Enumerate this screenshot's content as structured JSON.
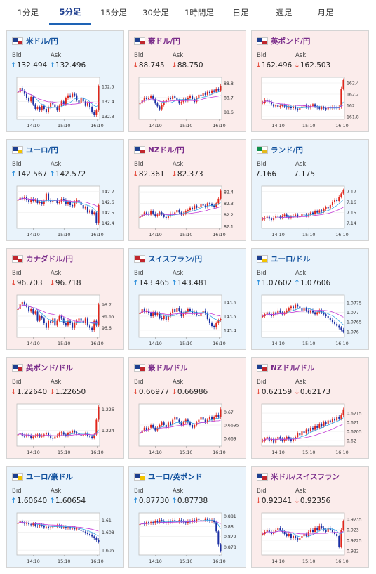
{
  "tabs": [
    "1分足",
    "5分足",
    "15分足",
    "30分足",
    "1時間足",
    "日足",
    "週足",
    "月足"
  ],
  "active_tab": 1,
  "x_ticks": [
    "14:10",
    "15:10",
    "16:10"
  ],
  "labels": {
    "bid": "Bid",
    "ask": "Ask"
  },
  "pairs": [
    {
      "name": "米ドル/円",
      "bid": "132.494",
      "ask": "132.496",
      "dir": "up",
      "theme": "blue",
      "flag": {
        "a": "#1e3f8f",
        "b": "#c0262d"
      },
      "ticks": [
        "132.5",
        "132.4",
        "132.3"
      ],
      "ymin": 132.28,
      "ymax": 132.56,
      "series": [
        132.46,
        132.49,
        132.47,
        132.45,
        132.42,
        132.4,
        132.43,
        132.38,
        132.35,
        132.36,
        132.34,
        132.37,
        132.35,
        132.33,
        132.36,
        132.39,
        132.38,
        132.36,
        132.34,
        132.37,
        132.4,
        132.38,
        132.42,
        132.44,
        132.43,
        132.45,
        132.44,
        132.41,
        132.39,
        132.42,
        132.4,
        132.37,
        132.39,
        132.36,
        132.33,
        132.31,
        132.34,
        132.5
      ]
    },
    {
      "name": "豪ドル/円",
      "bid": "88.745",
      "ask": "88.750",
      "dir": "down",
      "theme": "red",
      "flag": {
        "a": "#1e3f8f",
        "b": "#c0262d"
      },
      "ticks": [
        "88.8",
        "88.7",
        "88.6"
      ],
      "ymin": 88.55,
      "ymax": 88.84,
      "series": [
        88.66,
        88.68,
        88.7,
        88.69,
        88.7,
        88.71,
        88.69,
        88.66,
        88.64,
        88.62,
        88.65,
        88.67,
        88.68,
        88.7,
        88.69,
        88.71,
        88.7,
        88.68,
        88.66,
        88.67,
        88.69,
        88.68,
        88.7,
        88.71,
        88.69,
        88.67,
        88.7,
        88.72,
        88.71,
        88.73,
        88.72,
        88.74,
        88.73,
        88.75,
        88.74,
        88.76,
        88.75,
        88.78
      ]
    },
    {
      "name": "英ポンド/円",
      "bid": "162.496",
      "ask": "162.503",
      "dir": "down",
      "theme": "red",
      "flag": {
        "a": "#1e3f8f",
        "b": "#c0262d"
      },
      "ticks": [
        "162.4",
        "162.2",
        "162",
        "161.8"
      ],
      "ymin": 161.75,
      "ymax": 162.5,
      "series": [
        162.05,
        162.1,
        162.08,
        162.06,
        162.02,
        161.98,
        162.0,
        161.97,
        161.99,
        162.0,
        161.98,
        161.96,
        161.97,
        161.95,
        161.98,
        161.94,
        161.92,
        161.95,
        161.98,
        162.0,
        161.97,
        161.96,
        161.99,
        162.02,
        161.98,
        161.96,
        161.94,
        161.96,
        161.95,
        161.93,
        161.96,
        161.95,
        161.97,
        161.96,
        161.95,
        161.97,
        162.3,
        162.45
      ]
    },
    {
      "name": "ユーロ/円",
      "bid": "142.567",
      "ask": "142.572",
      "dir": "up",
      "theme": "blue",
      "flag": {
        "a": "#1e3f8f",
        "b": "#f2c300"
      },
      "ticks": [
        "142.7",
        "142.6",
        "142.5",
        "142.4"
      ],
      "ymin": 142.35,
      "ymax": 142.75,
      "series": [
        142.62,
        142.64,
        142.63,
        142.65,
        142.62,
        142.6,
        142.63,
        142.61,
        142.62,
        142.59,
        142.6,
        142.58,
        142.61,
        142.68,
        142.62,
        142.6,
        142.61,
        142.62,
        142.59,
        142.6,
        142.63,
        142.62,
        142.58,
        142.6,
        142.57,
        142.56,
        142.6,
        142.62,
        142.6,
        142.57,
        142.54,
        142.55,
        142.5,
        142.52,
        142.49,
        142.5,
        142.4,
        142.57
      ]
    },
    {
      "name": "NZドル/円",
      "bid": "82.361",
      "ask": "82.373",
      "dir": "down",
      "theme": "red",
      "flag": {
        "a": "#1e3f8f",
        "b": "#c0262d"
      },
      "ticks": [
        "82.4",
        "82.3",
        "82.2",
        "82.1"
      ],
      "ymin": 82.08,
      "ymax": 82.45,
      "series": [
        82.18,
        82.2,
        82.22,
        82.21,
        82.2,
        82.23,
        82.21,
        82.19,
        82.2,
        82.22,
        82.2,
        82.18,
        82.17,
        82.19,
        82.21,
        82.2,
        82.22,
        82.24,
        82.22,
        82.2,
        82.21,
        82.23,
        82.24,
        82.26,
        82.25,
        82.28,
        82.26,
        82.27,
        82.29,
        82.28,
        82.27,
        82.3,
        82.29,
        82.28,
        82.27,
        82.3,
        82.34,
        82.41
      ]
    },
    {
      "name": "ランド/円",
      "bid": "7.166",
      "ask": "7.175",
      "dir": "none",
      "theme": "blue",
      "flag": {
        "a": "#0d8f4a",
        "b": "#e4b91e"
      },
      "ticks": [
        "7.17",
        "7.16",
        "7.15",
        "7.14"
      ],
      "ymin": 7.135,
      "ymax": 7.175,
      "series": [
        7.144,
        7.145,
        7.146,
        7.144,
        7.143,
        7.145,
        7.147,
        7.146,
        7.145,
        7.147,
        7.148,
        7.146,
        7.145,
        7.146,
        7.147,
        7.148,
        7.146,
        7.147,
        7.149,
        7.148,
        7.147,
        7.148,
        7.15,
        7.149,
        7.151,
        7.15,
        7.152,
        7.151,
        7.153,
        7.155,
        7.154,
        7.157,
        7.16,
        7.162,
        7.161,
        7.165,
        7.168,
        7.171
      ]
    },
    {
      "name": "カナダドル/円",
      "bid": "96.703",
      "ask": "96.718",
      "dir": "down",
      "theme": "red",
      "flag": {
        "a": "#c0262d",
        "b": "#c0262d"
      },
      "ticks": [
        "96.7",
        "96.65",
        "96.6"
      ],
      "ymin": 96.56,
      "ymax": 96.74,
      "series": [
        96.68,
        96.7,
        96.71,
        96.7,
        96.69,
        96.67,
        96.68,
        96.66,
        96.67,
        96.63,
        96.65,
        96.64,
        96.62,
        96.6,
        96.63,
        96.62,
        96.64,
        96.61,
        96.63,
        96.65,
        96.64,
        96.62,
        96.61,
        96.63,
        96.62,
        96.6,
        96.62,
        96.63,
        96.64,
        96.63,
        96.62,
        96.64,
        96.61,
        96.6,
        96.59,
        96.63,
        96.61,
        96.7
      ]
    },
    {
      "name": "スイスフラン/円",
      "bid": "143.465",
      "ask": "143.481",
      "dir": "up",
      "theme": "blue",
      "flag": {
        "a": "#c0262d",
        "b": "#c0262d"
      },
      "ticks": [
        "143.6",
        "143.5",
        "143.4"
      ],
      "ymin": 143.35,
      "ymax": 143.65,
      "series": [
        143.52,
        143.55,
        143.53,
        143.54,
        143.52,
        143.5,
        143.53,
        143.51,
        143.52,
        143.49,
        143.48,
        143.5,
        143.47,
        143.5,
        143.52,
        143.55,
        143.53,
        143.56,
        143.54,
        143.5,
        143.52,
        143.53,
        143.55,
        143.54,
        143.52,
        143.53,
        143.51,
        143.5,
        143.52,
        143.54,
        143.52,
        143.48,
        143.45,
        143.43,
        143.42,
        143.45,
        143.47,
        143.48
      ]
    },
    {
      "name": "ユーロ/ドル",
      "bid": "1.07602",
      "ask": "1.07606",
      "dir": "up",
      "theme": "blue",
      "flag": {
        "a": "#1e3f8f",
        "b": "#f2c300"
      },
      "ticks": [
        "1.0775",
        "1.077",
        "1.0765",
        "1.076"
      ],
      "ymin": 1.0757,
      "ymax": 1.0779,
      "series": [
        1.0768,
        1.0769,
        1.077,
        1.0769,
        1.0768,
        1.077,
        1.0769,
        1.0771,
        1.077,
        1.0769,
        1.077,
        1.0771,
        1.0772,
        1.0773,
        1.0772,
        1.0774,
        1.0773,
        1.0772,
        1.0771,
        1.0772,
        1.0771,
        1.077,
        1.0771,
        1.077,
        1.0769,
        1.077,
        1.0771,
        1.077,
        1.0769,
        1.0768,
        1.0767,
        1.0766,
        1.0765,
        1.0764,
        1.0763,
        1.0762,
        1.0761,
        1.076
      ]
    },
    {
      "name": "英ポンド/ドル",
      "bid": "1.22640",
      "ask": "1.22650",
      "dir": "down",
      "theme": "red",
      "flag": {
        "a": "#1e3f8f",
        "b": "#c0262d"
      },
      "ticks": [
        "1.226",
        "1.224"
      ],
      "ymin": 1.2225,
      "ymax": 1.2265,
      "series": [
        1.2236,
        1.2237,
        1.2235,
        1.2234,
        1.2236,
        1.2235,
        1.2233,
        1.2234,
        1.2235,
        1.2236,
        1.2234,
        1.2235,
        1.2236,
        1.2237,
        1.2235,
        1.2233,
        1.2232,
        1.2234,
        1.2235,
        1.2237,
        1.2238,
        1.2236,
        1.2235,
        1.2237,
        1.2238,
        1.2239,
        1.2238,
        1.2237,
        1.2236,
        1.2235,
        1.2236,
        1.2237,
        1.2235,
        1.2234,
        1.2233,
        1.2236,
        1.225,
        1.2262
      ]
    },
    {
      "name": "豪ドル/ドル",
      "bid": "0.66977",
      "ask": "0.66986",
      "dir": "down",
      "theme": "red",
      "flag": {
        "a": "#1e3f8f",
        "b": "#c0262d"
      },
      "ticks": [
        "0.67",
        "0.6695",
        "0.669"
      ],
      "ymin": 0.6687,
      "ymax": 0.6703,
      "series": [
        0.6692,
        0.6693,
        0.6694,
        0.6693,
        0.6694,
        0.6695,
        0.6694,
        0.6693,
        0.6694,
        0.6695,
        0.6696,
        0.6695,
        0.6694,
        0.6696,
        0.6695,
        0.6697,
        0.6698,
        0.6697,
        0.6696,
        0.6695,
        0.6696,
        0.6697,
        0.6696,
        0.6695,
        0.6694,
        0.6695,
        0.6696,
        0.6697,
        0.6698,
        0.6697,
        0.6696,
        0.6697,
        0.6698,
        0.6697,
        0.6698,
        0.6699,
        0.6698,
        0.6701
      ]
    },
    {
      "name": "NZドル/ドル",
      "bid": "0.62159",
      "ask": "0.62173",
      "dir": "down",
      "theme": "red",
      "flag": {
        "a": "#1e3f8f",
        "b": "#c0262d"
      },
      "ticks": [
        "0.6215",
        "0.621",
        "0.6205",
        "0.62"
      ],
      "ymin": 0.6197,
      "ymax": 0.622,
      "series": [
        0.62,
        0.6201,
        0.6202,
        0.62,
        0.6201,
        0.6199,
        0.6201,
        0.6202,
        0.6201,
        0.62,
        0.6201,
        0.6202,
        0.6201,
        0.62,
        0.6201,
        0.6202,
        0.6204,
        0.6203,
        0.6205,
        0.6204,
        0.6206,
        0.6205,
        0.6207,
        0.6206,
        0.6208,
        0.6207,
        0.6209,
        0.6208,
        0.621,
        0.6209,
        0.6211,
        0.621,
        0.6212,
        0.6211,
        0.6213,
        0.6212,
        0.6214,
        0.6217
      ]
    },
    {
      "name": "ユーロ/豪ドル",
      "bid": "1.60640",
      "ask": "1.60654",
      "dir": "up",
      "theme": "blue",
      "flag": {
        "a": "#1e3f8f",
        "b": "#f2c300"
      },
      "ticks": [
        "1.61",
        "1.608",
        "1.605"
      ],
      "ymin": 1.6042,
      "ymax": 1.6112,
      "series": [
        1.6095,
        1.6098,
        1.6096,
        1.6094,
        1.6095,
        1.6093,
        1.6092,
        1.6094,
        1.6091,
        1.609,
        1.6092,
        1.6091,
        1.6088,
        1.6089,
        1.6087,
        1.6088,
        1.609,
        1.6089,
        1.6091,
        1.609,
        1.6088,
        1.6089,
        1.6087,
        1.6088,
        1.6086,
        1.6087,
        1.6085,
        1.6086,
        1.6084,
        1.6082,
        1.6081,
        1.6079,
        1.6077,
        1.6076,
        1.6073,
        1.607,
        1.6067,
        1.6064
      ]
    },
    {
      "name": "ユーロ/英ポンド",
      "bid": "0.87730",
      "ask": "0.87738",
      "dir": "up",
      "theme": "blue",
      "flag": {
        "a": "#1e3f8f",
        "b": "#f2c300"
      },
      "ticks": [
        "0.881",
        "0.88",
        "0.879",
        "0.878"
      ],
      "ymin": 0.8772,
      "ymax": 0.8813,
      "series": [
        0.8802,
        0.8803,
        0.8802,
        0.8804,
        0.8803,
        0.8804,
        0.8803,
        0.8805,
        0.8804,
        0.8806,
        0.8805,
        0.8804,
        0.8803,
        0.8805,
        0.8804,
        0.8806,
        0.8805,
        0.8804,
        0.8806,
        0.8805,
        0.8804,
        0.8803,
        0.8805,
        0.8804,
        0.8806,
        0.8805,
        0.8807,
        0.8806,
        0.8805,
        0.8806,
        0.8807,
        0.8806,
        0.8805,
        0.8806,
        0.8804,
        0.8795,
        0.8782,
        0.8776
      ]
    },
    {
      "name": "米ドル/スイスフラン",
      "bid": "0.92341",
      "ask": "0.92356",
      "dir": "down",
      "theme": "red",
      "flag": {
        "a": "#1e3f8f",
        "b": "#c0262d"
      },
      "ticks": [
        "0.9235",
        "0.923",
        "0.9225",
        "0.922"
      ],
      "ymin": 0.9218,
      "ymax": 0.9238,
      "series": [
        0.9228,
        0.9229,
        0.923,
        0.9229,
        0.9228,
        0.9229,
        0.923,
        0.9231,
        0.923,
        0.9229,
        0.9228,
        0.9227,
        0.9228,
        0.9226,
        0.9227,
        0.9226,
        0.9225,
        0.9226,
        0.9227,
        0.9228,
        0.9227,
        0.9229,
        0.923,
        0.9229,
        0.9231,
        0.923,
        0.9232,
        0.9231,
        0.923,
        0.9229,
        0.9231,
        0.923,
        0.9229,
        0.9228,
        0.9227,
        0.9222,
        0.923,
        0.9234
      ]
    }
  ]
}
